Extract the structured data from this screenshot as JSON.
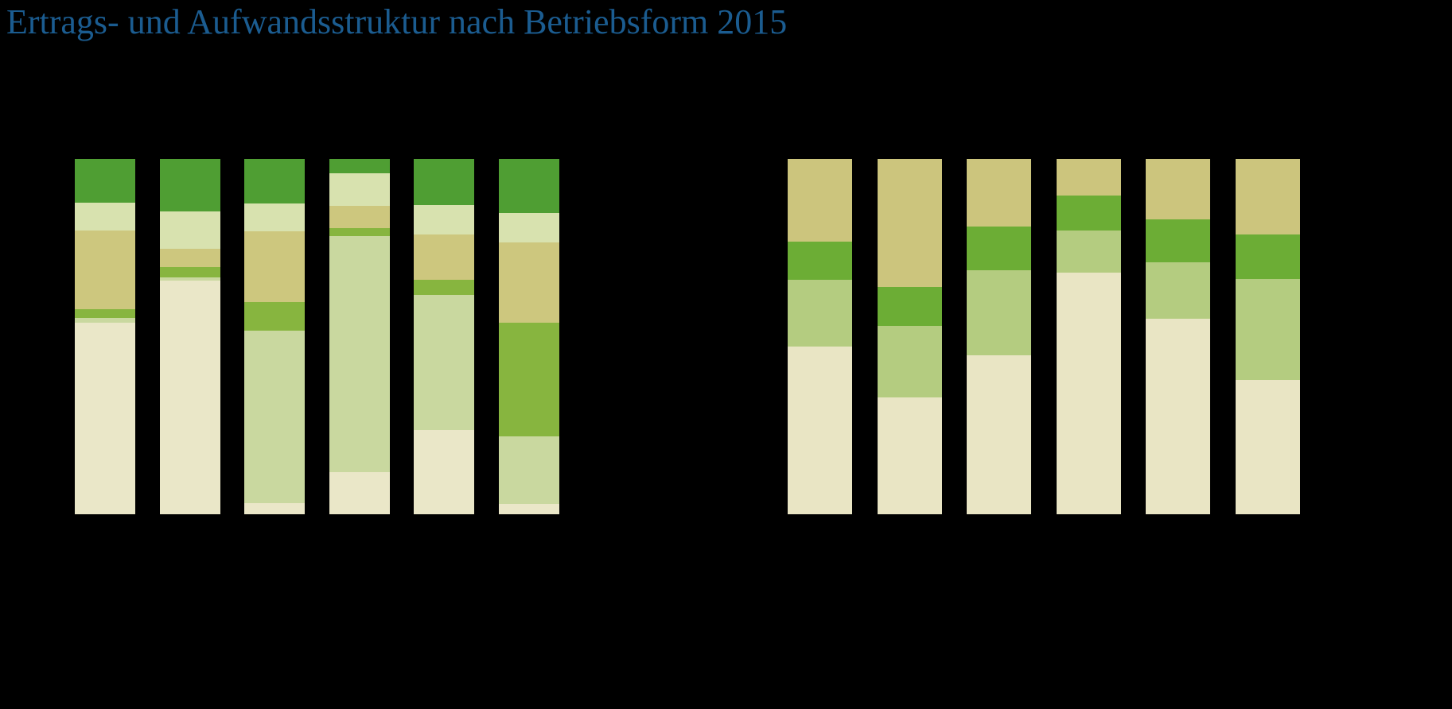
{
  "page": {
    "background": "#000000"
  },
  "title": {
    "text": "Ertrags- und Aufwandsstruktur nach Betriebsform 2015",
    "color": "#1B5C90"
  },
  "chart_data": [
    {
      "type": "bar",
      "variant": "stacked-100",
      "orientation": "vertical",
      "position": "left-panel",
      "title": "",
      "xlabel": "",
      "ylabel": "",
      "ylim": [
        0,
        100
      ],
      "grid": false,
      "axes_visible": false,
      "legend": "none-visible",
      "segment_colors_bottom_to_top": [
        "#EAE7C8",
        "#C9D89F",
        "#87B53F",
        "#CDC77E",
        "#D8E2AF",
        "#4F9E33"
      ],
      "segment_names_bottom_to_top": [
        "cream",
        "light-green",
        "medium-green",
        "khaki",
        "pale-green",
        "dark-green"
      ],
      "bars": [
        {
          "segments": [
            54.0,
            1.2,
            2.6,
            22.0,
            7.8,
            12.4
          ]
        },
        {
          "segments": [
            65.8,
            0.9,
            2.8,
            5.3,
            10.4,
            14.8
          ]
        },
        {
          "segments": [
            3.1,
            48.5,
            8.2,
            19.9,
            7.7,
            12.6
          ]
        },
        {
          "segments": [
            11.9,
            66.5,
            2.2,
            6.2,
            9.1,
            4.1
          ]
        },
        {
          "segments": [
            23.8,
            38.0,
            4.1,
            12.8,
            8.4,
            12.9
          ]
        },
        {
          "segments": [
            3.0,
            19.0,
            32.0,
            22.5,
            8.4,
            15.1
          ]
        }
      ]
    },
    {
      "type": "bar",
      "variant": "stacked-100",
      "orientation": "vertical",
      "position": "right-panel",
      "title": "",
      "xlabel": "",
      "ylabel": "",
      "ylim": [
        0,
        100
      ],
      "grid": false,
      "axes_visible": false,
      "legend": "none-visible",
      "segment_colors_bottom_to_top": [
        "#E9E5C4",
        "#B4CC80",
        "#6CAD35",
        "#CCC57D"
      ],
      "segment_names_bottom_to_top": [
        "cream",
        "light-green",
        "green",
        "khaki"
      ],
      "bars": [
        {
          "segments": [
            47.1,
            18.8,
            10.9,
            23.2
          ]
        },
        {
          "segments": [
            32.8,
            20.3,
            10.8,
            36.1
          ]
        },
        {
          "segments": [
            44.8,
            23.8,
            12.3,
            19.1
          ]
        },
        {
          "segments": [
            68.0,
            11.8,
            10.0,
            10.2
          ]
        },
        {
          "segments": [
            55.0,
            15.9,
            12.1,
            17.0
          ]
        },
        {
          "segments": [
            37.7,
            28.6,
            12.5,
            21.2
          ]
        }
      ]
    }
  ]
}
